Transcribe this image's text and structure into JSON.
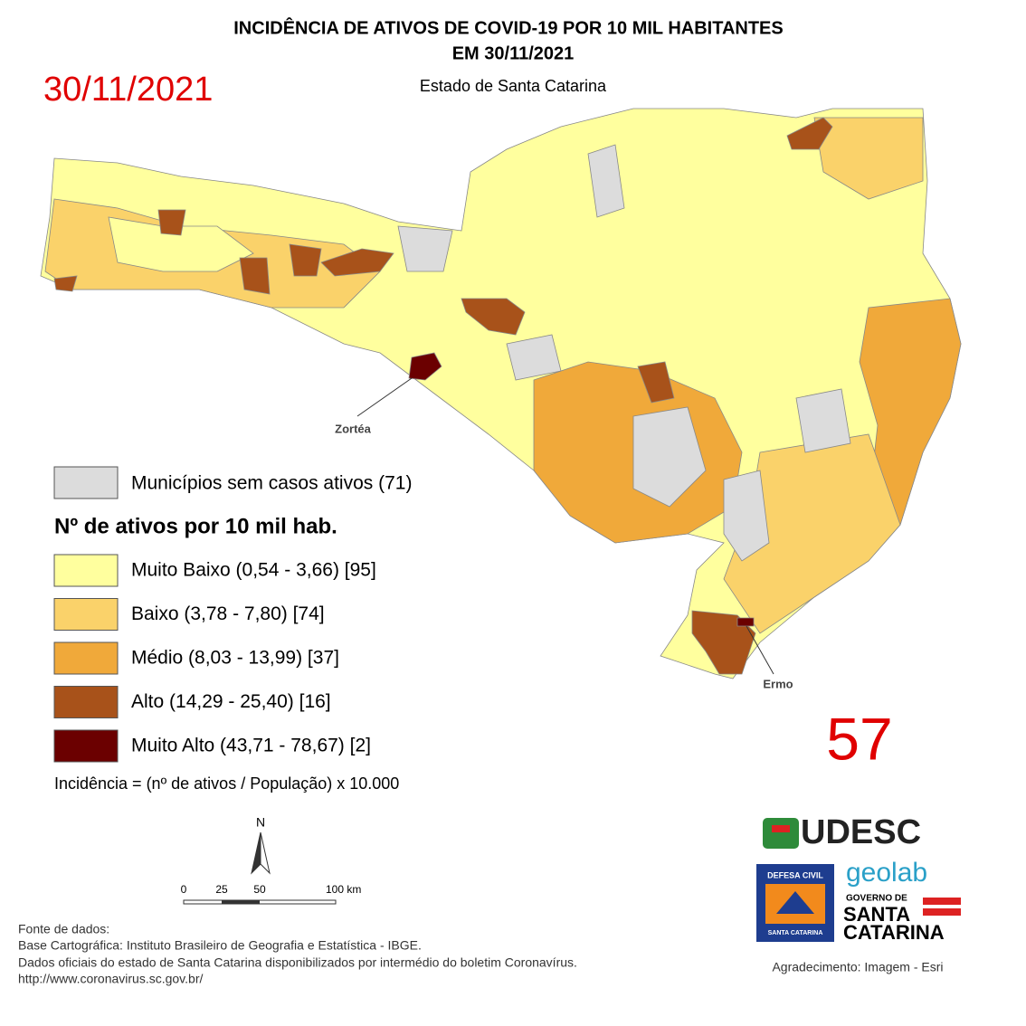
{
  "header": {
    "title": "INCIDÊNCIA DE ATIVOS DE COVID-19 POR 10 MIL HABITANTES",
    "title2": "EM 30/11/2021",
    "subtitle": "Estado de Santa Catarina",
    "date": "30/11/2021"
  },
  "map": {
    "labels": [
      "Zortéa",
      "Ermo"
    ]
  },
  "legend": {
    "no_cases": {
      "label": "Municípios sem casos ativos (71)",
      "color": "#dcdcdc"
    },
    "title": "Nº de ativos por 10 mil hab.",
    "classes": [
      {
        "label": "Muito Baixo (0,54 - 3,66) [95]",
        "color": "#ffff9e"
      },
      {
        "label": "Baixo (3,78 - 7,80)  [74]",
        "color": "#fad26a"
      },
      {
        "label": "Médio (8,03 - 13,99)  [37]",
        "color": "#f0a93a"
      },
      {
        "label": "Alto (14,29 - 25,40) [16]",
        "color": "#a8521a"
      },
      {
        "label": "Muito Alto (43,71 - 78,67) [2]",
        "color": "#6b0000"
      }
    ],
    "formula": "Incidência = (nº de ativos / População) x 10.000"
  },
  "big_number": 57,
  "scale": {
    "north": "N",
    "ticks": [
      "0",
      "25",
      "50",
      "100 km"
    ]
  },
  "sources": [
    "Fonte de dados:",
    "Base Cartográfica: Instituto Brasileiro de Geografia e Estatística - IBGE.",
    "Dados oficiais do estado de Santa Catarina disponibilizados por intermédio do boletim Coronavírus.",
    "http://www.coronavirus.sc.gov.br/"
  ],
  "logos": {
    "udesc": "UDESC",
    "geolab": "geolab",
    "defesa1": "DEFESA CIVIL",
    "defesa2": "SANTA CATARINA",
    "gov1": "GOVERNO DE",
    "gov2": "SANTA",
    "gov3": "CATARINA"
  },
  "credit": "Agradecimento: Imagem - Esri"
}
